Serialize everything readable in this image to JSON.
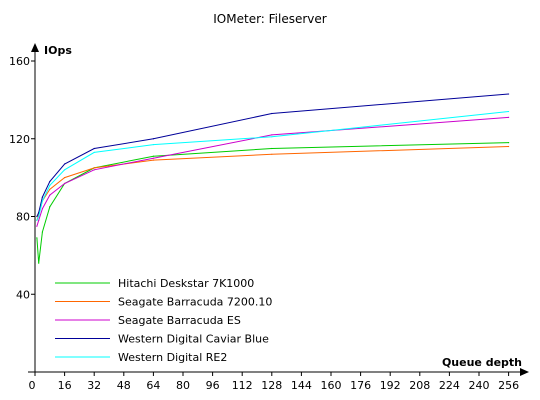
{
  "chart_data": {
    "type": "line",
    "title": "IOMeter: Fileserver",
    "ylabel": "IOps",
    "xlabel": "Queue depth",
    "xlim": [
      0,
      260
    ],
    "ylim": [
      0,
      160
    ],
    "x_ticks": [
      0,
      16,
      32,
      48,
      64,
      80,
      96,
      112,
      128,
      144,
      160,
      176,
      192,
      208,
      224,
      240,
      256
    ],
    "y_ticks": [
      40,
      80,
      120,
      160
    ],
    "grid": false,
    "legend_position": "bottom-left",
    "series": [
      {
        "name": "Hitachi Deskstar 7K1000",
        "color": "#00cc00",
        "points": [
          [
            1,
            69
          ],
          [
            2,
            56
          ],
          [
            4,
            72
          ],
          [
            8,
            85
          ],
          [
            16,
            97
          ],
          [
            32,
            105
          ],
          [
            64,
            111
          ],
          [
            128,
            115
          ],
          [
            256,
            118
          ]
        ]
      },
      {
        "name": "Seagate Barracuda 7200.10",
        "color": "#ff6600",
        "points": [
          [
            1,
            78
          ],
          [
            2,
            81
          ],
          [
            4,
            88
          ],
          [
            8,
            94
          ],
          [
            16,
            100
          ],
          [
            32,
            105
          ],
          [
            64,
            109
          ],
          [
            128,
            112
          ],
          [
            256,
            116
          ]
        ]
      },
      {
        "name": "Seagate Barracuda ES",
        "color": "#cc00cc",
        "points": [
          [
            1,
            75
          ],
          [
            2,
            78
          ],
          [
            4,
            84
          ],
          [
            8,
            91
          ],
          [
            16,
            97
          ],
          [
            32,
            104
          ],
          [
            64,
            110
          ],
          [
            128,
            122
          ],
          [
            256,
            131
          ]
        ]
      },
      {
        "name": "Western Digital Caviar Blue",
        "color": "#000099",
        "points": [
          [
            1,
            80
          ],
          [
            2,
            82
          ],
          [
            4,
            90
          ],
          [
            8,
            98
          ],
          [
            16,
            107
          ],
          [
            32,
            115
          ],
          [
            64,
            120
          ],
          [
            128,
            133
          ],
          [
            256,
            143
          ]
        ]
      },
      {
        "name": "Western Digital RE2",
        "color": "#00ffff",
        "points": [
          [
            1,
            78
          ],
          [
            2,
            80
          ],
          [
            4,
            88
          ],
          [
            8,
            96
          ],
          [
            16,
            104
          ],
          [
            32,
            113
          ],
          [
            64,
            117
          ],
          [
            128,
            121
          ],
          [
            256,
            134
          ]
        ]
      }
    ]
  }
}
